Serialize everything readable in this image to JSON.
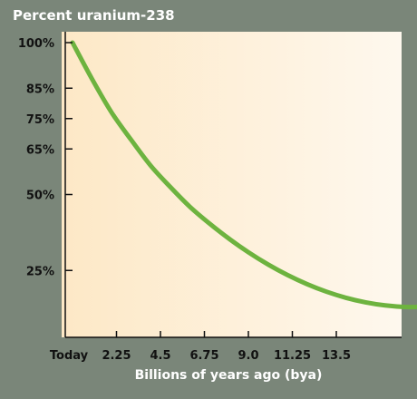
{
  "chart_data": {
    "type": "line",
    "title": "Percent uranium-238",
    "xlabel": "Billions of years ago (bya)",
    "ylabel": "",
    "x_ticks": [
      {
        "value": 0,
        "label": "Today"
      },
      {
        "value": 2.25,
        "label": "2.25"
      },
      {
        "value": 4.5,
        "label": "4.5"
      },
      {
        "value": 6.75,
        "label": "6.75"
      },
      {
        "value": 9.0,
        "label": "9.0"
      },
      {
        "value": 11.25,
        "label": "11.25"
      },
      {
        "value": 13.5,
        "label": "13.5"
      }
    ],
    "y_ticks": [
      {
        "value": 100,
        "label": "100%"
      },
      {
        "value": 85,
        "label": "85%"
      },
      {
        "value": 75,
        "label": "75%"
      },
      {
        "value": 65,
        "label": "65%"
      },
      {
        "value": 50,
        "label": "50%"
      },
      {
        "value": 25,
        "label": "25%"
      }
    ],
    "xlim": [
      0,
      18
    ],
    "ylim": [
      0,
      100
    ],
    "grid": false,
    "series": [
      {
        "color": "#6db33f",
        "points": [
          {
            "x": 0,
            "y": 100
          },
          {
            "x": 1,
            "y": 88
          },
          {
            "x": 2,
            "y": 77
          },
          {
            "x": 3,
            "y": 68
          },
          {
            "x": 4,
            "y": 59.5
          },
          {
            "x": 5,
            "y": 52.5
          },
          {
            "x": 6,
            "y": 46
          },
          {
            "x": 7,
            "y": 40.5
          },
          {
            "x": 8,
            "y": 35.5
          },
          {
            "x": 9,
            "y": 31
          },
          {
            "x": 10,
            "y": 27
          },
          {
            "x": 11,
            "y": 23.5
          },
          {
            "x": 12,
            "y": 20.5
          },
          {
            "x": 13,
            "y": 18
          },
          {
            "x": 14,
            "y": 16
          },
          {
            "x": 15,
            "y": 14.5
          },
          {
            "x": 16,
            "y": 13.5
          },
          {
            "x": 17,
            "y": 13
          },
          {
            "x": 18,
            "y": 13
          }
        ]
      }
    ],
    "colors": {
      "background": "#7a8679",
      "plot_left": "#fde8c6",
      "plot_right": "#fef8ee",
      "axis": "#111111",
      "title_text": "#ffffff"
    }
  }
}
